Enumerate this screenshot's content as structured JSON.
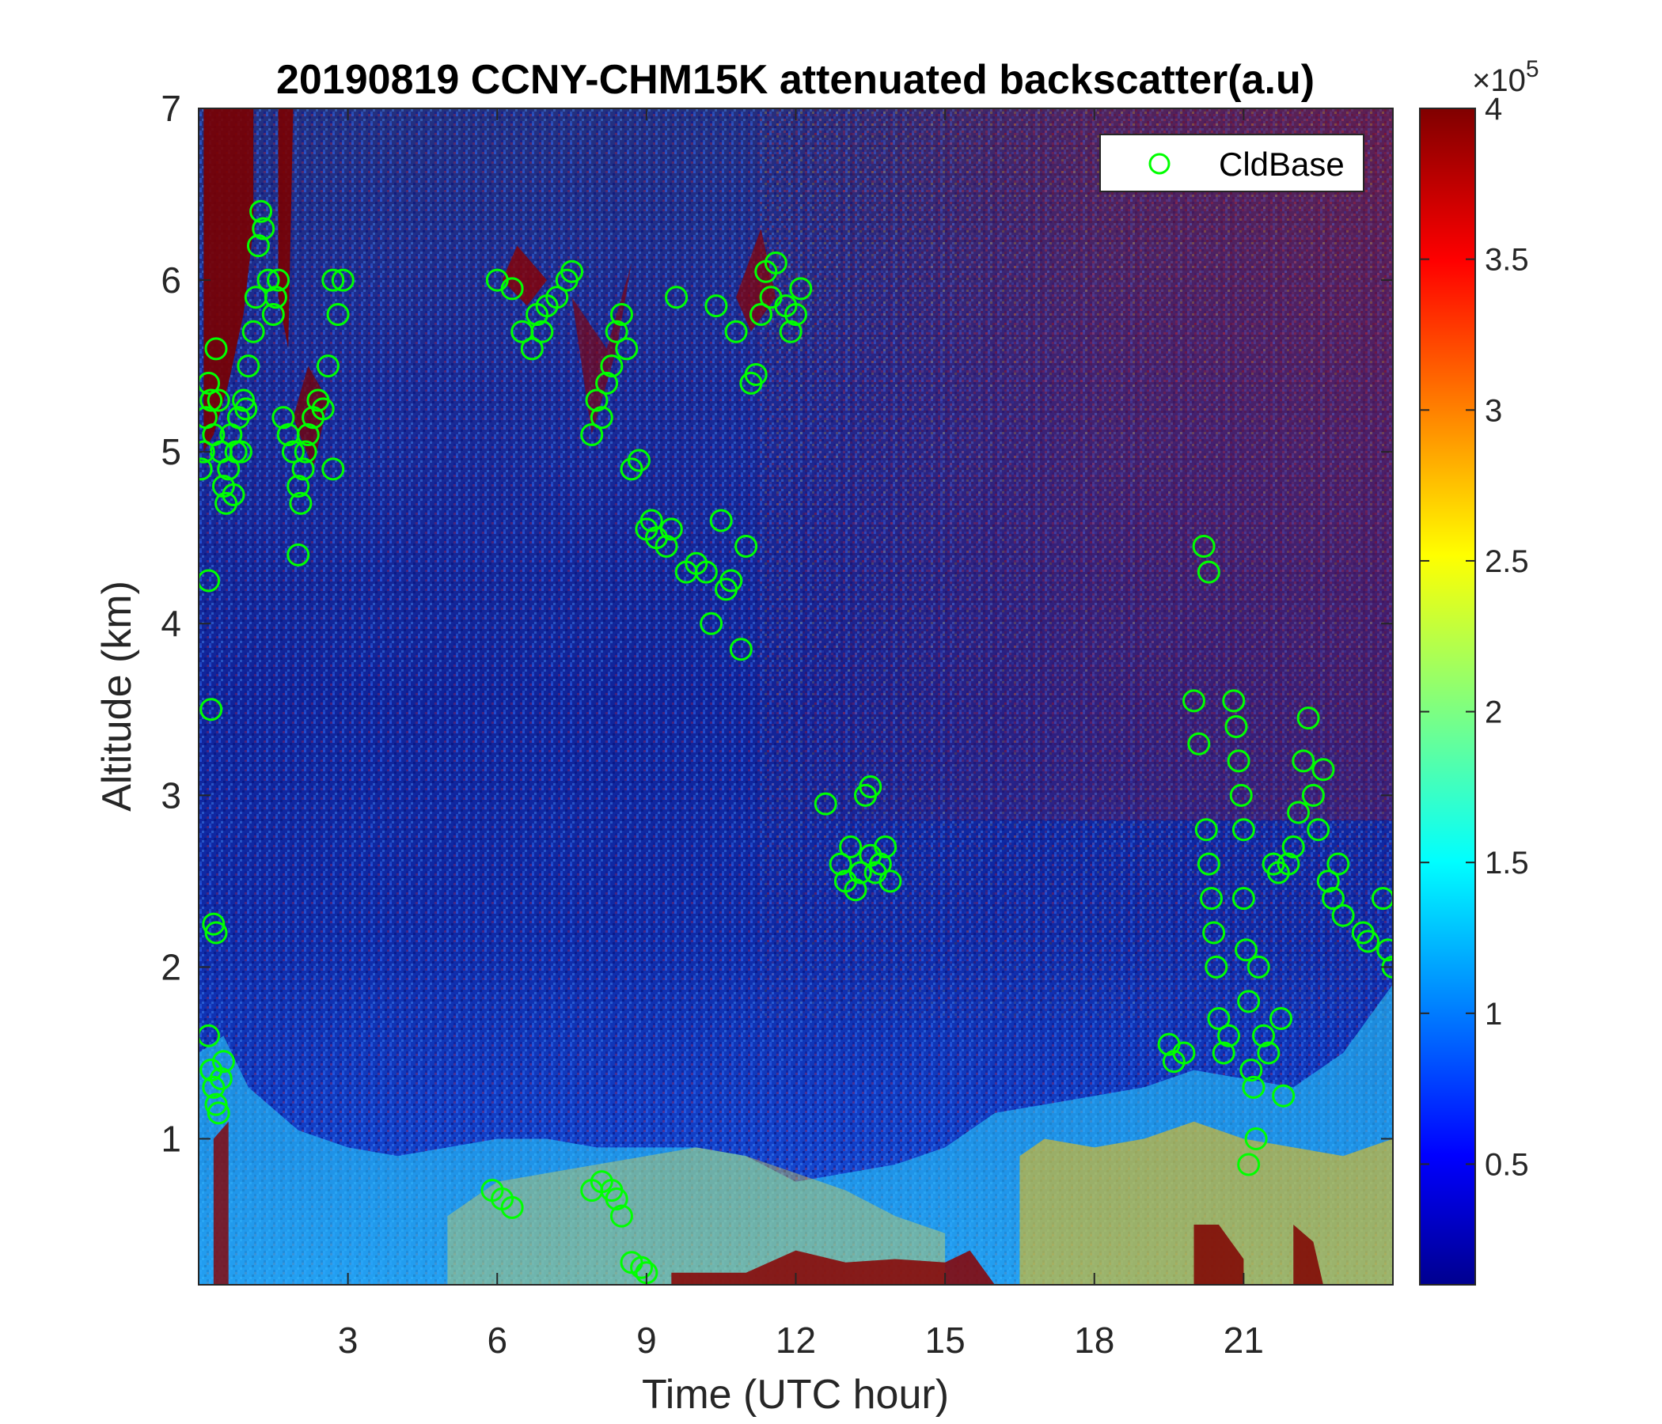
{
  "chart_data": {
    "type": "heatmap",
    "title": "20190819 CCNY-CHM15K attenuated backscatter(a.u)",
    "xlabel": "Time (UTC hour)",
    "ylabel": "Altitude (km)",
    "xlim": [
      0,
      24
    ],
    "ylim": [
      0.15,
      7
    ],
    "xticks": [
      3,
      6,
      9,
      12,
      15,
      18,
      21
    ],
    "xtick_labels": [
      "3",
      "6",
      "9",
      "12",
      "15",
      "18",
      "21"
    ],
    "yticks": [
      1,
      2,
      3,
      4,
      5,
      6,
      7
    ],
    "ytick_labels": [
      "1",
      "2",
      "3",
      "4",
      "5",
      "6",
      "7"
    ],
    "colorbar": {
      "colormap": "jet",
      "range": [
        10000,
        400000
      ],
      "ticks": [
        0.5,
        1,
        1.5,
        2,
        2.5,
        3,
        3.5,
        4
      ],
      "tick_labels": [
        "0.5",
        "1",
        "1.5",
        "2",
        "2.5",
        "3",
        "3.5",
        "4"
      ],
      "exponent_label": "×10",
      "exponent_power": "5"
    },
    "legend": {
      "position": "top-right",
      "entries": [
        "CldBase"
      ]
    },
    "marker_color": "#00ff00",
    "series": [
      {
        "name": "CldBase",
        "marker": "circle",
        "points": [
          [
            0.05,
            4.9
          ],
          [
            0.1,
            5.0
          ],
          [
            0.15,
            5.2
          ],
          [
            0.2,
            5.4
          ],
          [
            0.25,
            5.3
          ],
          [
            0.3,
            5.1
          ],
          [
            0.35,
            5.6
          ],
          [
            0.4,
            5.3
          ],
          [
            0.45,
            5.0
          ],
          [
            0.5,
            4.8
          ],
          [
            0.55,
            4.7
          ],
          [
            0.6,
            4.9
          ],
          [
            0.65,
            5.1
          ],
          [
            0.7,
            4.75
          ],
          [
            0.75,
            5.0
          ],
          [
            0.8,
            5.2
          ],
          [
            0.85,
            5.0
          ],
          [
            0.9,
            5.3
          ],
          [
            0.95,
            5.25
          ],
          [
            1.0,
            5.5
          ],
          [
            1.1,
            5.7
          ],
          [
            1.15,
            5.9
          ],
          [
            1.2,
            6.2
          ],
          [
            1.25,
            6.4
          ],
          [
            1.3,
            6.3
          ],
          [
            1.4,
            6.0
          ],
          [
            1.5,
            5.8
          ],
          [
            1.55,
            5.9
          ],
          [
            1.6,
            6.0
          ],
          [
            1.7,
            5.2
          ],
          [
            1.8,
            5.1
          ],
          [
            1.9,
            5.0
          ],
          [
            2.0,
            4.8
          ],
          [
            2.05,
            4.7
          ],
          [
            2.1,
            4.9
          ],
          [
            2.15,
            5.0
          ],
          [
            2.2,
            5.1
          ],
          [
            2.3,
            5.2
          ],
          [
            2.4,
            5.3
          ],
          [
            2.5,
            5.25
          ],
          [
            2.6,
            5.5
          ],
          [
            2.7,
            6.0
          ],
          [
            2.8,
            5.8
          ],
          [
            2.9,
            6.0
          ],
          [
            2.7,
            4.9
          ],
          [
            2.0,
            4.4
          ],
          [
            0.2,
            4.25
          ],
          [
            0.25,
            3.5
          ],
          [
            0.3,
            2.25
          ],
          [
            0.35,
            2.2
          ],
          [
            0.2,
            1.6
          ],
          [
            0.25,
            1.4
          ],
          [
            0.3,
            1.3
          ],
          [
            0.35,
            1.2
          ],
          [
            0.4,
            1.15
          ],
          [
            0.45,
            1.35
          ],
          [
            0.5,
            1.45
          ],
          [
            6.0,
            6.0
          ],
          [
            6.3,
            5.95
          ],
          [
            6.5,
            5.7
          ],
          [
            6.7,
            5.6
          ],
          [
            6.8,
            5.8
          ],
          [
            6.9,
            5.7
          ],
          [
            7.0,
            5.85
          ],
          [
            7.2,
            5.9
          ],
          [
            7.4,
            6.0
          ],
          [
            7.5,
            6.05
          ],
          [
            7.9,
            5.1
          ],
          [
            8.0,
            5.3
          ],
          [
            8.1,
            5.2
          ],
          [
            8.2,
            5.4
          ],
          [
            8.3,
            5.5
          ],
          [
            8.4,
            5.7
          ],
          [
            8.5,
            5.8
          ],
          [
            8.6,
            5.6
          ],
          [
            8.7,
            4.9
          ],
          [
            8.85,
            4.95
          ],
          [
            9.0,
            4.55
          ],
          [
            9.1,
            4.6
          ],
          [
            9.2,
            4.5
          ],
          [
            9.4,
            4.45
          ],
          [
            9.5,
            4.55
          ],
          [
            9.6,
            5.9
          ],
          [
            9.8,
            4.3
          ],
          [
            10.0,
            4.35
          ],
          [
            10.2,
            4.3
          ],
          [
            10.3,
            4.0
          ],
          [
            10.4,
            5.85
          ],
          [
            10.5,
            4.6
          ],
          [
            10.6,
            4.2
          ],
          [
            10.7,
            4.25
          ],
          [
            10.8,
            5.7
          ],
          [
            10.9,
            3.85
          ],
          [
            11.0,
            4.45
          ],
          [
            11.1,
            5.4
          ],
          [
            11.2,
            5.45
          ],
          [
            11.3,
            5.8
          ],
          [
            11.4,
            6.05
          ],
          [
            11.5,
            5.9
          ],
          [
            11.6,
            6.1
          ],
          [
            11.8,
            5.85
          ],
          [
            11.9,
            5.7
          ],
          [
            12.0,
            5.8
          ],
          [
            12.1,
            5.95
          ],
          [
            5.9,
            0.7
          ],
          [
            6.1,
            0.65
          ],
          [
            6.3,
            0.6
          ],
          [
            7.9,
            0.7
          ],
          [
            8.1,
            0.75
          ],
          [
            8.3,
            0.7
          ],
          [
            8.4,
            0.65
          ],
          [
            8.5,
            0.55
          ],
          [
            8.7,
            0.28
          ],
          [
            8.9,
            0.25
          ],
          [
            9.0,
            0.22
          ],
          [
            12.6,
            2.95
          ],
          [
            12.9,
            2.6
          ],
          [
            13.0,
            2.5
          ],
          [
            13.1,
            2.7
          ],
          [
            13.2,
            2.45
          ],
          [
            13.3,
            2.55
          ],
          [
            13.4,
            3.0
          ],
          [
            13.5,
            2.65
          ],
          [
            13.6,
            2.55
          ],
          [
            13.7,
            2.6
          ],
          [
            13.8,
            2.7
          ],
          [
            13.9,
            2.5
          ],
          [
            13.5,
            3.05
          ],
          [
            19.5,
            1.55
          ],
          [
            19.6,
            1.45
          ],
          [
            19.8,
            1.5
          ],
          [
            20.0,
            3.55
          ],
          [
            20.1,
            3.3
          ],
          [
            20.2,
            4.45
          ],
          [
            20.3,
            4.3
          ],
          [
            20.25,
            2.8
          ],
          [
            20.3,
            2.6
          ],
          [
            20.35,
            2.4
          ],
          [
            20.4,
            2.2
          ],
          [
            20.45,
            2.0
          ],
          [
            20.5,
            1.7
          ],
          [
            20.6,
            1.5
          ],
          [
            20.7,
            1.6
          ],
          [
            20.8,
            3.55
          ],
          [
            20.85,
            3.4
          ],
          [
            20.9,
            3.2
          ],
          [
            20.95,
            3.0
          ],
          [
            21.0,
            2.8
          ],
          [
            21.0,
            2.4
          ],
          [
            21.05,
            2.1
          ],
          [
            21.1,
            1.8
          ],
          [
            21.1,
            0.85
          ],
          [
            21.15,
            1.4
          ],
          [
            21.2,
            1.3
          ],
          [
            21.25,
            1.0
          ],
          [
            21.3,
            2.0
          ],
          [
            21.4,
            1.6
          ],
          [
            21.5,
            1.5
          ],
          [
            21.6,
            2.6
          ],
          [
            21.7,
            2.55
          ],
          [
            21.75,
            1.7
          ],
          [
            21.8,
            1.25
          ],
          [
            21.9,
            2.6
          ],
          [
            22.0,
            2.7
          ],
          [
            22.1,
            2.9
          ],
          [
            22.2,
            3.2
          ],
          [
            22.3,
            3.45
          ],
          [
            22.4,
            3.0
          ],
          [
            22.5,
            2.8
          ],
          [
            22.6,
            3.15
          ],
          [
            22.7,
            2.5
          ],
          [
            22.8,
            2.4
          ],
          [
            22.9,
            2.6
          ],
          [
            23.0,
            2.3
          ],
          [
            23.4,
            2.2
          ],
          [
            23.5,
            2.15
          ],
          [
            23.8,
            2.4
          ],
          [
            23.9,
            2.1
          ],
          [
            24.0,
            2.0
          ]
        ]
      }
    ]
  }
}
